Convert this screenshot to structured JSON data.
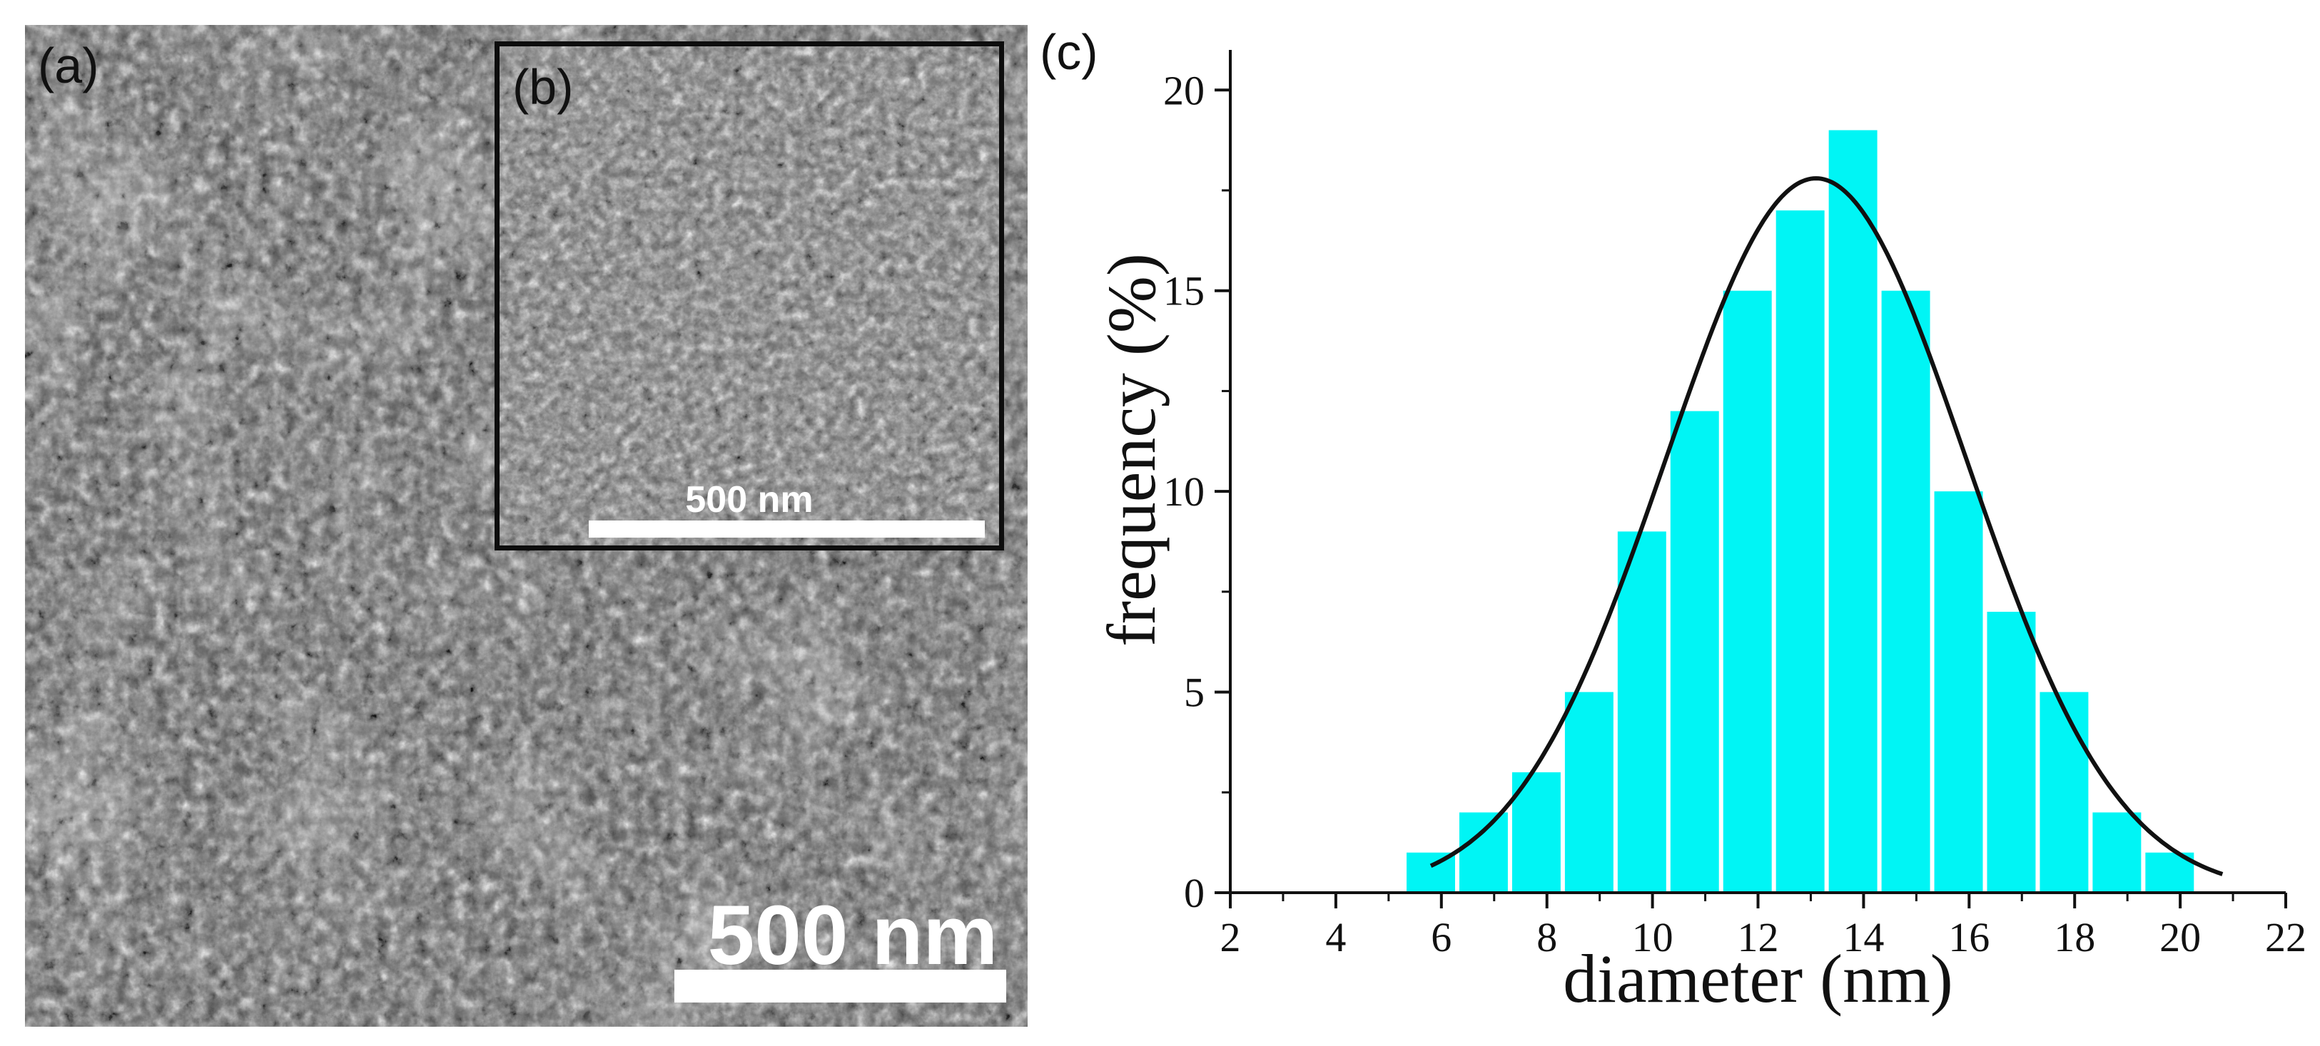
{
  "figure": {
    "panel_a": {
      "label": "(a)",
      "scale_bar_text": "500 nm"
    },
    "panel_b": {
      "label": "(b)",
      "scale_bar_text": "500 nm"
    },
    "panel_c": {
      "label": "(c)"
    }
  },
  "colors": {
    "bar_fill": "#00f5f5",
    "fit_line": "#111111",
    "sem_gray": "#5a5a5a"
  },
  "chart_data": {
    "type": "bar",
    "title": "",
    "xlabel": "diameter (nm)",
    "ylabel": "frequency (%)",
    "xlim": [
      2,
      22
    ],
    "ylim": [
      0,
      21
    ],
    "xticks": [
      2,
      4,
      6,
      8,
      10,
      12,
      14,
      16,
      18,
      20,
      22
    ],
    "yticks": [
      0,
      5,
      10,
      15,
      20
    ],
    "bins": [
      {
        "start": 5.3,
        "end": 6.3,
        "value": 1
      },
      {
        "start": 6.3,
        "end": 7.3,
        "value": 2
      },
      {
        "start": 7.3,
        "end": 8.3,
        "value": 3
      },
      {
        "start": 8.3,
        "end": 9.3,
        "value": 5
      },
      {
        "start": 9.3,
        "end": 10.3,
        "value": 9
      },
      {
        "start": 10.3,
        "end": 11.3,
        "value": 12
      },
      {
        "start": 11.3,
        "end": 12.3,
        "value": 15
      },
      {
        "start": 12.3,
        "end": 13.3,
        "value": 17
      },
      {
        "start": 13.3,
        "end": 14.3,
        "value": 19
      },
      {
        "start": 14.3,
        "end": 15.3,
        "value": 15
      },
      {
        "start": 15.3,
        "end": 16.3,
        "value": 10
      },
      {
        "start": 16.3,
        "end": 17.3,
        "value": 7
      },
      {
        "start": 17.3,
        "end": 18.3,
        "value": 5
      },
      {
        "start": 18.3,
        "end": 19.3,
        "value": 2
      },
      {
        "start": 19.3,
        "end": 20.3,
        "value": 1
      }
    ],
    "fit": {
      "type": "gaussian",
      "center": 13.1,
      "sigma": 2.85,
      "amplitude": 17.8,
      "x_range": [
        5.8,
        20.8
      ]
    }
  }
}
